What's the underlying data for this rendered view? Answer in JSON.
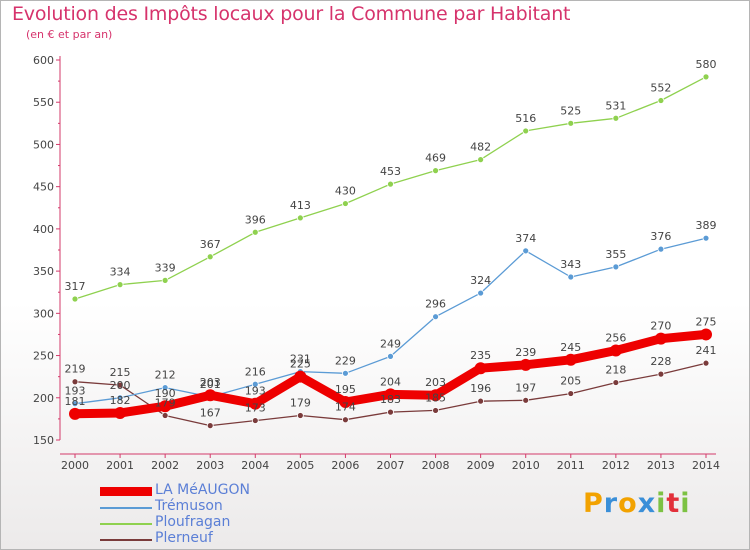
{
  "header": {
    "title": "Evolution des Impôts locaux pour la Commune par Habitant",
    "subtitle": "(en € et par an)"
  },
  "chart_data": {
    "type": "line",
    "title": "Evolution des Impôts locaux pour la Commune par Habitant",
    "subtitle": "(en € et par an)",
    "x": [
      "2000",
      "2001",
      "2002",
      "2003",
      "2004",
      "2005",
      "2006",
      "2007",
      "2008",
      "2009",
      "2010",
      "2011",
      "2012",
      "2013",
      "2014"
    ],
    "ylim": [
      150,
      600
    ],
    "yticks": [
      150,
      200,
      250,
      300,
      350,
      400,
      450,
      500,
      550,
      600
    ],
    "grid": false,
    "legend_position": "bottom-left",
    "series": [
      {
        "name": "LA MéAUGON",
        "color": "#ee0000",
        "values": [
          181,
          182,
          190,
          203,
          193,
          225,
          195,
          204,
          203,
          235,
          239,
          245,
          256,
          270,
          275
        ]
      },
      {
        "name": "Trémuson",
        "color": "#5b9bd5",
        "values": [
          193,
          200,
          212,
          201,
          216,
          231,
          229,
          249,
          296,
          324,
          374,
          343,
          355,
          376,
          389
        ]
      },
      {
        "name": "Ploufragan",
        "color": "#8fd14f",
        "values": [
          317,
          334,
          339,
          367,
          396,
          413,
          430,
          453,
          469,
          482,
          516,
          525,
          531,
          552,
          580
        ]
      },
      {
        "name": "Plerneuf",
        "color": "#7a3b3b",
        "values": [
          219,
          215,
          179,
          167,
          173,
          179,
          174,
          183,
          185,
          196,
          197,
          205,
          218,
          228,
          241
        ]
      }
    ]
  },
  "logo": {
    "letters": [
      "P",
      "r",
      "o",
      "x",
      "i",
      "t",
      "i"
    ],
    "colors": [
      "#f2a200",
      "#3a8fd8",
      "#f2a200",
      "#3a8fd8",
      "#7cc243",
      "#e2303a",
      "#7cc243"
    ]
  }
}
